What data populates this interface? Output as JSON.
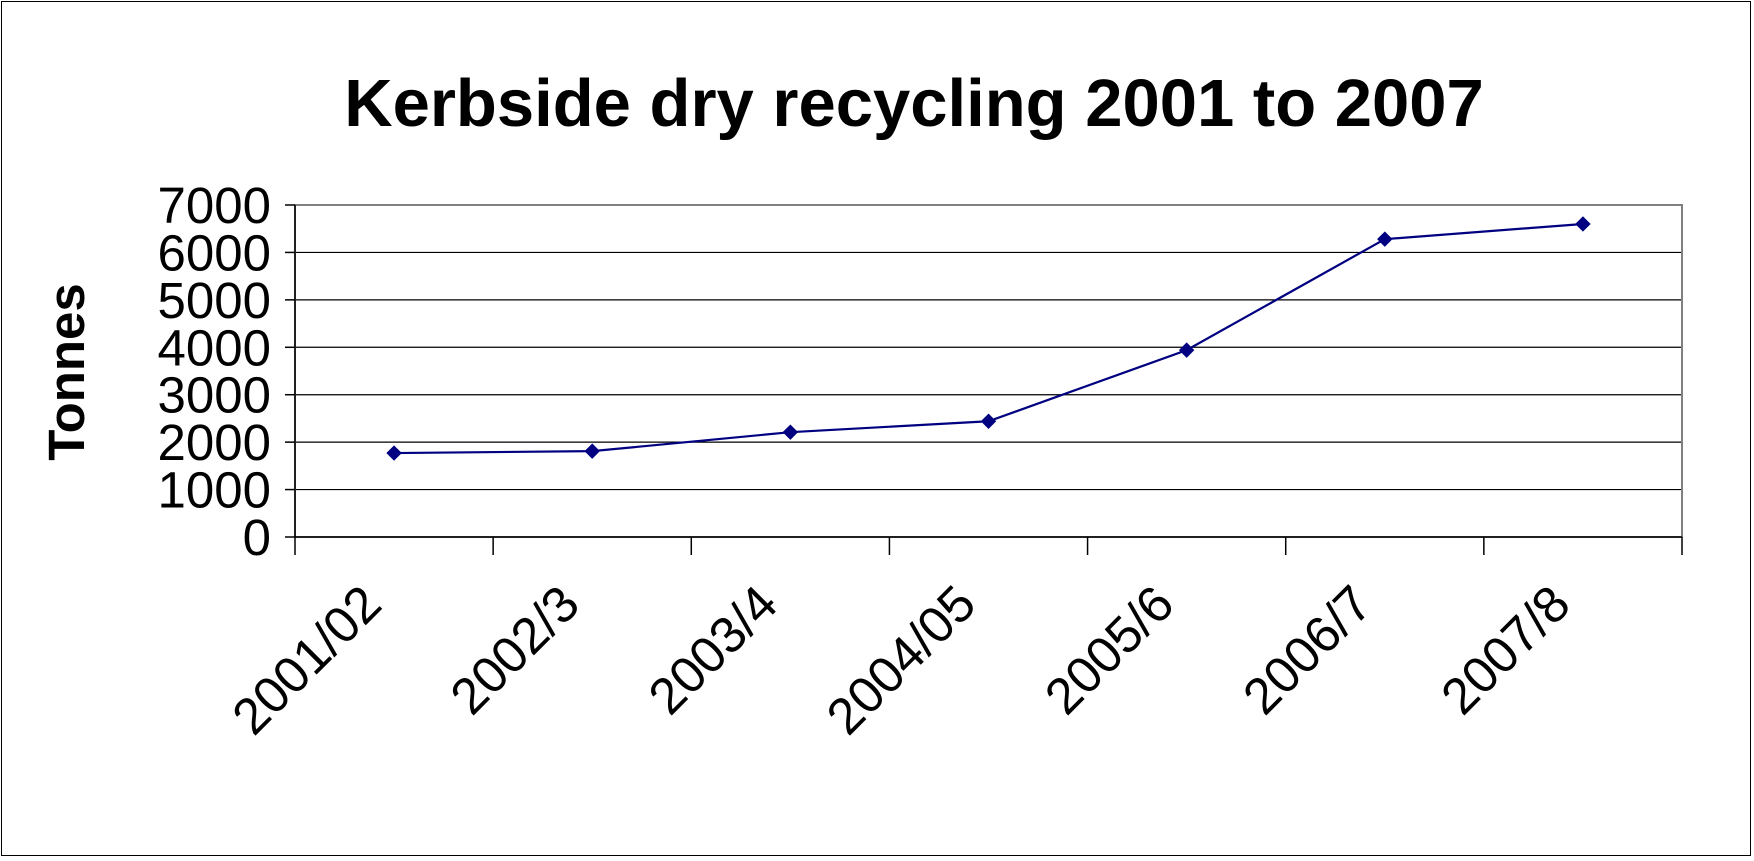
{
  "chart_data": {
    "type": "line",
    "title": "Kerbside dry recycling 2001 to 2007",
    "xlabel": "",
    "ylabel": "Tonnes",
    "categories": [
      "2001/02",
      "2002/3",
      "2003/4",
      "2004/05",
      "2005/6",
      "2006/7",
      "2007/8"
    ],
    "series": [
      {
        "values": [
          1770,
          1810,
          2210,
          2440,
          3940,
          6280,
          6600
        ]
      }
    ],
    "ylim": [
      0,
      7000
    ],
    "yticks": [
      0,
      1000,
      2000,
      3000,
      4000,
      5000,
      6000,
      7000
    ],
    "ytick_labels": [
      "0",
      "1000",
      "2000",
      "3000",
      "4000",
      "5000",
      "6000",
      "7000"
    ],
    "grid": true,
    "legend": "none",
    "colors": {
      "series": "#000080",
      "grid": "#000000",
      "plot_border": "#808080"
    }
  }
}
